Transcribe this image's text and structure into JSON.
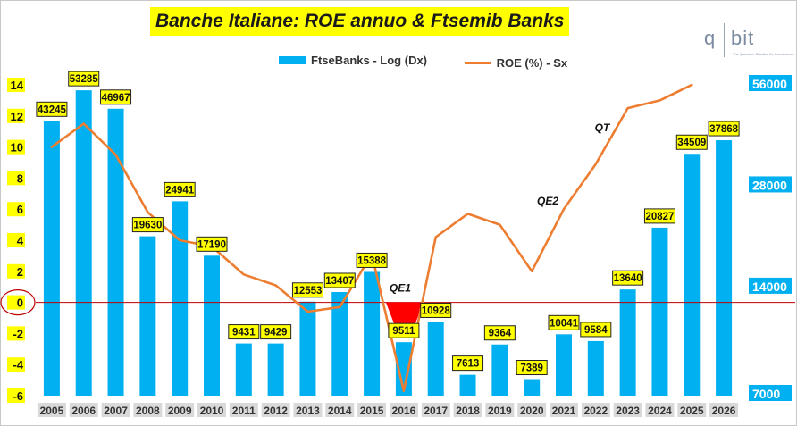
{
  "title": "Banche Italiane: ROE annuo & Ftsemib Banks",
  "logo": {
    "q": "q",
    "bit": "bit",
    "tagline": "The Quantum Solution for Investments"
  },
  "legend": {
    "bar_label": "FtseBanks - Log (Dx)",
    "line_label": "ROE (%) - Sx"
  },
  "colors": {
    "bar": "#00b0f0",
    "line": "#ed7d31",
    "label_bg": "#ffff00",
    "zero_line": "#c00000",
    "qe_marker": "#ff0000",
    "right_tick_bg": "#00b0f0"
  },
  "chart_data": {
    "type": "bar+line",
    "categories": [
      "2005",
      "2006",
      "2007",
      "2008",
      "2009",
      "2010",
      "2011",
      "2012",
      "2013",
      "2014",
      "2015",
      "2016",
      "2017",
      "2018",
      "2019",
      "2020",
      "2021",
      "2022",
      "2023",
      "2024",
      "2025",
      "2026"
    ],
    "series": [
      {
        "name": "FtseBanks - Log (Dx)",
        "type": "bar",
        "axis": "right",
        "scale": "log",
        "values": [
          43245,
          53285,
          46967,
          19630,
          24941,
          17190,
          9431,
          9429,
          12553,
          13407,
          15388,
          9511,
          10928,
          7613,
          9364,
          7389,
          10041,
          9584,
          13640,
          20827,
          34509,
          37868
        ]
      },
      {
        "name": "ROE (%) - Sx",
        "type": "line",
        "axis": "left",
        "values": [
          10.0,
          11.5,
          9.5,
          5.8,
          4.0,
          3.6,
          1.8,
          1.1,
          -0.6,
          -0.3,
          3.1,
          -5.7,
          4.2,
          5.7,
          5.0,
          2.0,
          6.0,
          8.9,
          12.5,
          13.0,
          14.0,
          null
        ]
      }
    ],
    "left_axis": {
      "ylim": [
        -6,
        14
      ],
      "ticks": [
        "14",
        "12",
        "10",
        "8",
        "6",
        "4",
        "2",
        "0",
        "-2",
        "-4",
        "-6"
      ]
    },
    "right_axis": {
      "scale": "log",
      "ticks": [
        "56000",
        "28000",
        "14000",
        "7000"
      ]
    },
    "annotations": [
      "QE1",
      "QE2",
      "QT"
    ],
    "grid": false,
    "legend_position": "top"
  }
}
